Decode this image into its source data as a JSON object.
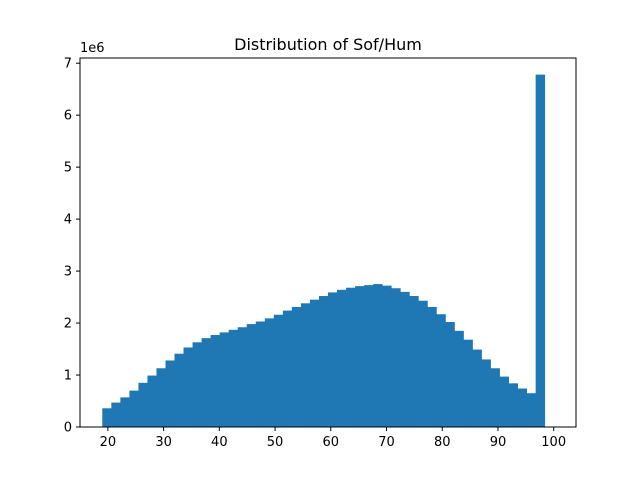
{
  "chart_data": {
    "type": "bar",
    "title": "Distribution of Sof/Hum",
    "xlabel": "",
    "ylabel": "",
    "y_offset_label": "1e6",
    "bar_color": "#1f77b4",
    "xlim": [
      15,
      104
    ],
    "ylim": [
      0,
      7.1
    ],
    "x_ticks": [
      20,
      30,
      40,
      50,
      60,
      70,
      80,
      90,
      100
    ],
    "x_tick_labels": [
      "20",
      "30",
      "40",
      "50",
      "60",
      "70",
      "80",
      "90",
      "100"
    ],
    "y_ticks": [
      0,
      1,
      2,
      3,
      4,
      5,
      6,
      7
    ],
    "y_tick_labels": [
      "0",
      "1",
      "2",
      "3",
      "4",
      "5",
      "6",
      "7"
    ],
    "grid": false,
    "legend": "none",
    "bins": {
      "start": 19,
      "width": 1.62,
      "values": [
        0.36,
        0.47,
        0.57,
        0.7,
        0.85,
        0.99,
        1.13,
        1.28,
        1.41,
        1.53,
        1.63,
        1.71,
        1.77,
        1.82,
        1.87,
        1.92,
        1.98,
        2.03,
        2.09,
        2.16,
        2.24,
        2.31,
        2.38,
        2.45,
        2.52,
        2.59,
        2.64,
        2.68,
        2.71,
        2.73,
        2.75,
        2.72,
        2.67,
        2.6,
        2.52,
        2.43,
        2.31,
        2.17,
        2.02,
        1.85,
        1.68,
        1.49,
        1.3,
        1.13,
        0.97,
        0.84,
        0.74,
        0.65,
        6.78
      ]
    }
  }
}
